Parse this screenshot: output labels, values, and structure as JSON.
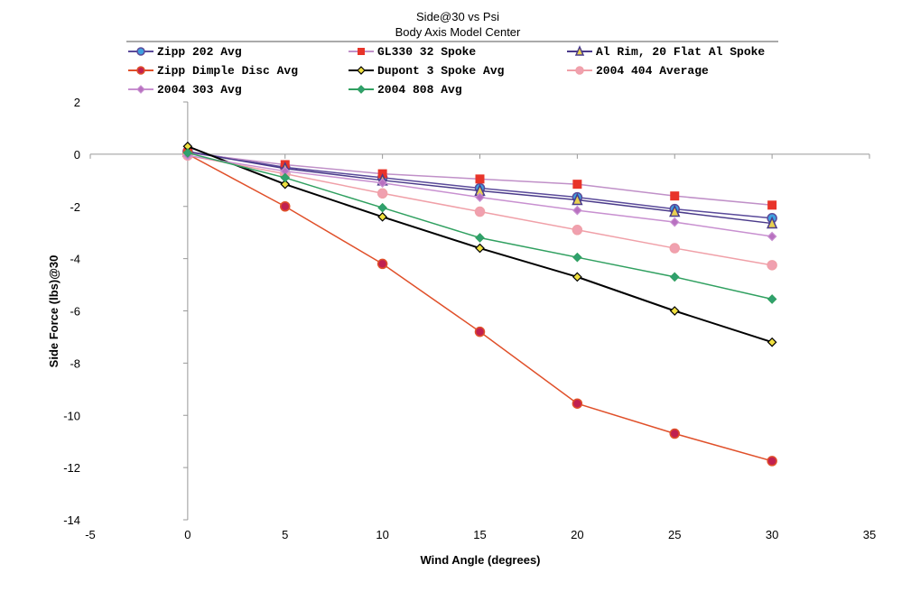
{
  "chart_data": {
    "type": "line",
    "title": "Side@30 vs Psi",
    "subtitle": "Body Axis Model Center",
    "xlabel": "Wind Angle (degrees)",
    "ylabel": "Side Force (lbs)@30",
    "xlim": [
      -5,
      35
    ],
    "ylim": [
      -14,
      2
    ],
    "xticks": [
      "-5",
      "0",
      "5",
      "10",
      "15",
      "20",
      "25",
      "30",
      "35"
    ],
    "yticks": [
      "2",
      "0",
      "-2",
      "-4",
      "-6",
      "-8",
      "-10",
      "-12",
      "-14"
    ],
    "legend_position": "top",
    "x": [
      0,
      5,
      10,
      15,
      20,
      25,
      30
    ],
    "series": [
      {
        "name": "Zipp 202 Avg",
        "color": "#5a4a9a",
        "marker": "circle",
        "mcolor": "#3fa0e0",
        "values": [
          0.1,
          -0.5,
          -0.9,
          -1.3,
          -1.65,
          -2.1,
          -2.45
        ]
      },
      {
        "name": "GL330 32 Spoke",
        "color": "#c090c8",
        "marker": "square",
        "mcolor": "#e8342a",
        "values": [
          0.05,
          -0.4,
          -0.75,
          -0.95,
          -1.15,
          -1.6,
          -1.95
        ]
      },
      {
        "name": "Al Rim, 20 Flat Al Spoke",
        "color": "#4a3a8a",
        "marker": "triangle",
        "mcolor": "#e8d050",
        "values": [
          0.1,
          -0.55,
          -1.0,
          -1.4,
          -1.75,
          -2.2,
          -2.65
        ]
      },
      {
        "name": "Zipp Dimple Disc Avg",
        "color": "#e0502a",
        "marker": "circle",
        "mcolor": "#c02050",
        "values": [
          0,
          -2.0,
          -4.2,
          -6.8,
          -9.55,
          -10.7,
          -11.75
        ]
      },
      {
        "name": "Dupont 3 Spoke Avg",
        "color": "#000000",
        "marker": "diamond",
        "mcolor": "#f0e040",
        "values": [
          0.3,
          -1.15,
          -2.4,
          -3.6,
          -4.7,
          -6.0,
          -7.2
        ]
      },
      {
        "name": "2004 404 Average",
        "color": "#f0a0a8",
        "marker": "circle",
        "mcolor": "#f0a0b0",
        "values": [
          -0.05,
          -0.75,
          -1.5,
          -2.2,
          -2.9,
          -3.6,
          -4.25
        ]
      },
      {
        "name": "2004 303 Avg",
        "color": "#c890d0",
        "marker": "diamond",
        "mcolor": "#b870c0",
        "values": [
          -0.05,
          -0.65,
          -1.1,
          -1.65,
          -2.15,
          -2.6,
          -3.15
        ]
      },
      {
        "name": "2004 808 Avg",
        "color": "#30a060",
        "marker": "diamond",
        "mcolor": "#30a070",
        "values": [
          0.05,
          -0.9,
          -2.05,
          -3.2,
          -3.95,
          -4.7,
          -5.55
        ]
      }
    ]
  }
}
